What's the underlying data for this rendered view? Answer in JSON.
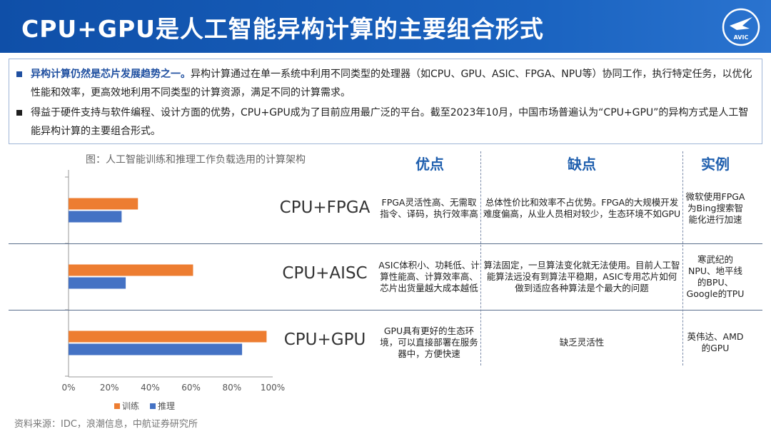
{
  "header": {
    "title": "CPU+GPU是人工智能异构计算的主要组合形式",
    "logo_text": "AVIC"
  },
  "bullets": [
    {
      "highlight": "异构计算仍然是芯片发展趋势之一。",
      "text": "异构计算通过在单一系统中利用不同类型的处理器（如CPU、GPU、ASIC、FPGA、NPU等）协同工作，执行特定任务，以优化性能和效率，更高效地利用不同类型的计算资源，满足不同的计算需求。"
    },
    {
      "highlight": "",
      "text": "得益于硬件支持与软件编程、设计方面的优势，CPU+GPU成为了目前应用最广泛的平台。截至2023年10月，中国市场普遍认为“CPU+GPU”的异构方式是人工智能异构计算的主要组合形式。"
    }
  ],
  "chart_caption": "图：人工智能训练和推理工作负载选用的计算架构",
  "chart_data": {
    "type": "bar",
    "orientation": "horizontal",
    "categories": [
      "CPU+FPGA",
      "CPU+AISC",
      "CPU+GPU"
    ],
    "series": [
      {
        "name": "训练",
        "values": [
          34,
          61,
          97
        ],
        "color": "#ed7d31"
      },
      {
        "name": "推理",
        "values": [
          26,
          28,
          85
        ],
        "color": "#4472c4"
      }
    ],
    "xlim": [
      0,
      100
    ],
    "xticks": [
      "0%",
      "20%",
      "40%",
      "60%",
      "80%",
      "100%"
    ],
    "legend_position": "bottom",
    "grid": false
  },
  "table": {
    "headers": [
      "优点",
      "缺点",
      "实例"
    ],
    "rows": [
      {
        "label": "CPU+FPGA",
        "pros": "FPGA灵活性高、无需取指令、译码，执行效率高",
        "cons": "总体性价比和效率不占优势。FPGA的大规模开发难度偏高，从业人员相对较少，生态环境不如GPU",
        "examples": "微软使用FPGA为Bing搜索智能化进行加速"
      },
      {
        "label": "CPU+AISC",
        "pros": "ASIC体积小、功耗低、计算性能高、计算效率高、芯片出货量越大成本越低",
        "cons": "算法固定，一旦算法变化就无法使用。目前人工智能算法远没有到算法平稳期，ASIC专用芯片如何做到适应各种算法是个最大的问题",
        "examples": "寒武纪的NPU、地平线的BPU、Google的TPU"
      },
      {
        "label": "CPU+GPU",
        "pros": "GPU具有更好的生态环境，可以直接部署在服务器中，方便快速",
        "cons": "缺乏灵活性",
        "examples": "英伟达、AMD的GPU"
      }
    ]
  },
  "source": "资料来源：IDC，浪潮信息，中航证券研究所",
  "colors": {
    "banner": "#1a5cb8",
    "accent": "#1f5fae",
    "train": "#ed7d31",
    "infer": "#4472c4"
  }
}
